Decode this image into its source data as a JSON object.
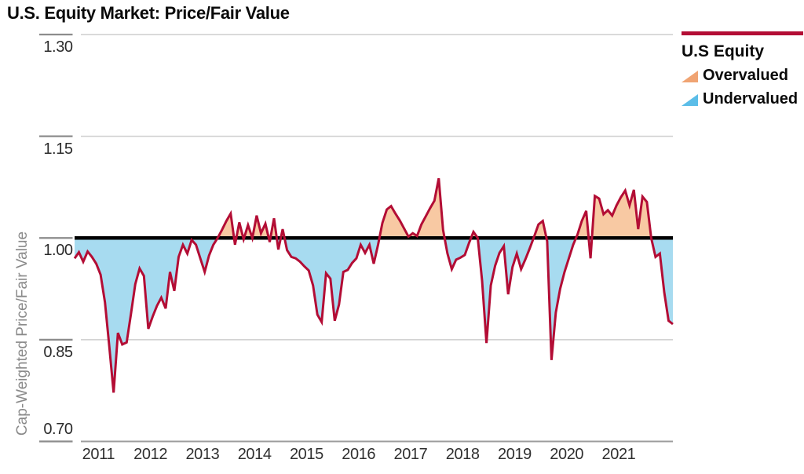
{
  "title": "U.S. Equity Market: Price/Fair Value",
  "y_axis": {
    "title": "Cap-Weighted Price/Fair Value",
    "tick_labels": [
      "1.30",
      "1.15",
      "1.00",
      "0.85",
      "0.70"
    ],
    "tick_values": [
      1.3,
      1.15,
      1.0,
      0.85,
      0.7
    ]
  },
  "x_axis": {
    "year_labels": [
      "2011",
      "2012",
      "2013",
      "2014",
      "2015",
      "2016",
      "2017",
      "2018",
      "2019",
      "2020",
      "2021"
    ]
  },
  "legend": {
    "series_label": "U.S Equity",
    "overvalued_label": "Overvalued",
    "undervalued_label": "Undervalued"
  },
  "colors": {
    "line_red": "#b30d35",
    "fair_value_line": "#000000",
    "overvalued_fill": "#f8c9a3",
    "undervalued_fill": "#a7dbf0",
    "legend_overvalued_swatch": "#f0a473",
    "legend_undervalued_swatch": "#5bbde8",
    "gridline": "#cdcdcd",
    "axis_line": "#9c9c9c",
    "tick_mark": "#8c8c8c"
  },
  "chart_data": {
    "type": "area",
    "title": "U.S. Equity Market: Price/Fair Value",
    "xlabel": "",
    "ylabel": "Cap-Weighted Price/Fair Value",
    "ylim": [
      0.7,
      1.3
    ],
    "baseline": 1.0,
    "grid": "horizontal",
    "legend_position": "top-right",
    "frequency": "monthly",
    "start": "2011-01",
    "end": "2022-07",
    "x_tick_labels": [
      "2011",
      "2012",
      "2013",
      "2014",
      "2015",
      "2016",
      "2017",
      "2018",
      "2019",
      "2020",
      "2021"
    ],
    "y_tick_labels": [
      "1.30",
      "1.15",
      "1.00",
      "0.85",
      "0.70"
    ],
    "shading_rule": "area between series and baseline 1.00: above = Overvalued (orange), below = Undervalued (blue)",
    "series": [
      {
        "name": "U.S Equity",
        "values": [
          0.97,
          0.979,
          0.965,
          0.98,
          0.972,
          0.962,
          0.946,
          0.905,
          0.84,
          0.772,
          0.86,
          0.843,
          0.846,
          0.888,
          0.932,
          0.955,
          0.944,
          0.866,
          0.884,
          0.9,
          0.912,
          0.896,
          0.95,
          0.922,
          0.972,
          0.99,
          0.977,
          0.997,
          0.99,
          0.97,
          0.95,
          0.974,
          0.99,
          1.0,
          1.012,
          1.025,
          1.036,
          0.99,
          1.023,
          0.998,
          1.019,
          1.0,
          1.033,
          1.007,
          1.021,
          0.994,
          1.029,
          0.983,
          1.013,
          0.982,
          0.972,
          0.97,
          0.965,
          0.958,
          0.952,
          0.93,
          0.887,
          0.876,
          0.948,
          0.94,
          0.878,
          0.902,
          0.95,
          0.953,
          0.963,
          0.97,
          0.99,
          0.978,
          0.99,
          0.962,
          0.99,
          1.022,
          1.042,
          1.047,
          1.036,
          1.026,
          1.014,
          1.002,
          1.007,
          1.003,
          1.02,
          1.032,
          1.044,
          1.055,
          1.088,
          1.012,
          0.977,
          0.954,
          0.968,
          0.971,
          0.975,
          0.993,
          1.009,
          1.0,
          0.937,
          0.845,
          0.93,
          0.959,
          0.978,
          0.988,
          0.917,
          0.957,
          0.977,
          0.954,
          0.969,
          0.985,
          1.002,
          1.02,
          1.025,
          0.995,
          0.82,
          0.89,
          0.925,
          0.95,
          0.97,
          0.99,
          1.005,
          1.025,
          1.04,
          0.97,
          1.062,
          1.058,
          1.035,
          1.041,
          1.033,
          1.048,
          1.06,
          1.07,
          1.048,
          1.071,
          1.013,
          1.061,
          1.053,
          1.0,
          0.972,
          0.977,
          0.92,
          0.878,
          0.873
        ]
      }
    ]
  }
}
